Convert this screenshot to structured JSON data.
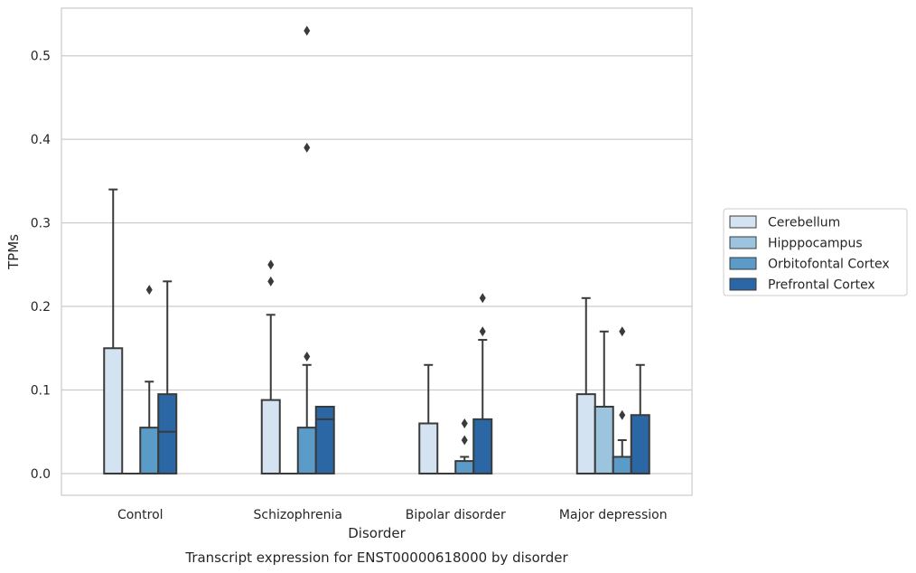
{
  "chart_data": {
    "type": "box",
    "caption": "Transcript expression for ENST00000618000 by disorder",
    "xlabel": "Disorder",
    "ylabel": "TPMs",
    "ylim": [
      -0.026,
      0.557
    ],
    "yticks": [
      0.0,
      0.1,
      0.2,
      0.3,
      0.4,
      0.5
    ],
    "ytick_labels": [
      "0.0",
      "0.1",
      "0.2",
      "0.3",
      "0.4",
      "0.5"
    ],
    "grid": "horizontal",
    "legend_position": "right",
    "categories": [
      "Control",
      "Schizophrenia",
      "Bipolar disorder",
      "Major depression"
    ],
    "series": [
      {
        "name": "Cerebellum",
        "color": "#d4e3f1",
        "boxes": [
          {
            "q1": 0.0,
            "median": 0.0,
            "q3": 0.15,
            "whisker_low": 0.0,
            "whisker_high": 0.34,
            "outliers": []
          },
          {
            "q1": 0.0,
            "median": 0.0,
            "q3": 0.088,
            "whisker_low": 0.0,
            "whisker_high": 0.19,
            "outliers": [
              0.23,
              0.25
            ]
          },
          {
            "q1": 0.0,
            "median": 0.0,
            "q3": 0.06,
            "whisker_low": 0.0,
            "whisker_high": 0.13,
            "outliers": []
          },
          {
            "q1": 0.0,
            "median": 0.0,
            "q3": 0.095,
            "whisker_low": 0.0,
            "whisker_high": 0.21,
            "outliers": []
          }
        ]
      },
      {
        "name": "Hipppocampus",
        "color": "#9cc4df",
        "boxes": [
          {
            "q1": 0.0,
            "median": 0.0,
            "q3": 0.0,
            "whisker_low": 0.0,
            "whisker_high": 0.0,
            "outliers": []
          },
          {
            "q1": 0.0,
            "median": 0.0,
            "q3": 0.0,
            "whisker_low": 0.0,
            "whisker_high": 0.0,
            "outliers": []
          },
          {
            "q1": 0.0,
            "median": 0.0,
            "q3": 0.0,
            "whisker_low": 0.0,
            "whisker_high": 0.0,
            "outliers": []
          },
          {
            "q1": 0.0,
            "median": 0.0,
            "q3": 0.08,
            "whisker_low": 0.0,
            "whisker_high": 0.17,
            "outliers": []
          }
        ]
      },
      {
        "name": "Orbitofontal Cortex",
        "color": "#5a9bc8",
        "boxes": [
          {
            "q1": 0.0,
            "median": 0.0,
            "q3": 0.055,
            "whisker_low": 0.0,
            "whisker_high": 0.11,
            "outliers": [
              0.22
            ]
          },
          {
            "q1": 0.0,
            "median": 0.0,
            "q3": 0.055,
            "whisker_low": 0.0,
            "whisker_high": 0.13,
            "outliers": [
              0.14,
              0.39,
              0.53
            ]
          },
          {
            "q1": 0.0,
            "median": 0.0,
            "q3": 0.015,
            "whisker_low": 0.0,
            "whisker_high": 0.02,
            "outliers": [
              0.04,
              0.06
            ]
          },
          {
            "q1": 0.0,
            "median": 0.0,
            "q3": 0.02,
            "whisker_low": 0.0,
            "whisker_high": 0.04,
            "outliers": [
              0.07,
              0.17
            ]
          }
        ]
      },
      {
        "name": "Prefrontal Cortex",
        "color": "#2b67a5",
        "boxes": [
          {
            "q1": 0.0,
            "median": 0.05,
            "q3": 0.095,
            "whisker_low": 0.0,
            "whisker_high": 0.23,
            "outliers": []
          },
          {
            "q1": 0.0,
            "median": 0.065,
            "q3": 0.08,
            "whisker_low": 0.0,
            "whisker_high": 0.08,
            "outliers": []
          },
          {
            "q1": 0.0,
            "median": 0.0,
            "q3": 0.065,
            "whisker_low": 0.0,
            "whisker_high": 0.16,
            "outliers": [
              0.17,
              0.21
            ]
          },
          {
            "q1": 0.0,
            "median": 0.0,
            "q3": 0.07,
            "whisker_low": 0.0,
            "whisker_high": 0.13,
            "outliers": []
          }
        ]
      }
    ]
  }
}
